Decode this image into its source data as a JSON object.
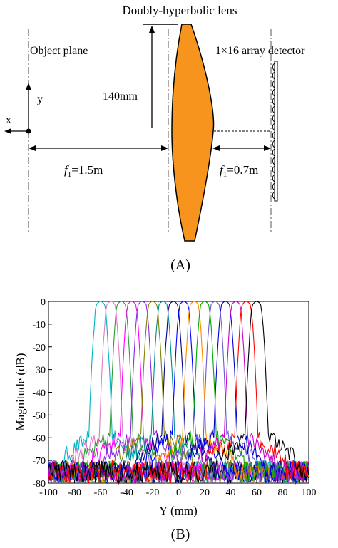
{
  "diagram": {
    "lens_label": "Doubly-hyperbolic lens",
    "object_plane_label": "Object plane",
    "detector_label": "1×16 array detector",
    "lens_height_label": "140mm",
    "axis_y_label": "y",
    "axis_x_label": "x",
    "f1_left": {
      "sym": "f",
      "sub": "1",
      "val": "=1.5m"
    },
    "f1_right": {
      "sym": "f",
      "sub": "1",
      "val": "=0.7m"
    },
    "panel_label": "(A)",
    "lens_color": "#F7941D"
  },
  "chart_data": {
    "type": "line",
    "panel_label": "(B)",
    "xlabel": "Y (mm)",
    "ylabel": "Magnitude (dB)",
    "xlim": [
      -100,
      100
    ],
    "ylim": [
      -80,
      0
    ],
    "xticks": [
      -100,
      -80,
      -60,
      -40,
      -20,
      0,
      20,
      40,
      60,
      80,
      100
    ],
    "yticks": [
      0,
      -10,
      -20,
      -30,
      -40,
      -50,
      -60,
      -70,
      -80
    ],
    "grid": false,
    "beam_width_mm": 18,
    "series": [
      {
        "peak": -60,
        "color": "#00B4C8"
      },
      {
        "peak": -52,
        "color": "#E07AC8"
      },
      {
        "peak": -44,
        "color": "#2E9B3A"
      },
      {
        "peak": -36,
        "color": "#FF00FF"
      },
      {
        "peak": -28,
        "color": "#8A2BE2"
      },
      {
        "peak": -20,
        "color": "#808000"
      },
      {
        "peak": -12,
        "color": "#008B8B"
      },
      {
        "peak": -4,
        "color": "#00008B"
      },
      {
        "peak": 4,
        "color": "#0000FF"
      },
      {
        "peak": 12,
        "color": "#FF8C00"
      },
      {
        "peak": 20,
        "color": "#00AA00"
      },
      {
        "peak": 28,
        "color": "#6A5ACD"
      },
      {
        "peak": 36,
        "color": "#0000CD"
      },
      {
        "peak": 44,
        "color": "#CC00CC"
      },
      {
        "peak": 52,
        "color": "#FF0000"
      },
      {
        "peak": 60,
        "color": "#000000"
      }
    ]
  }
}
